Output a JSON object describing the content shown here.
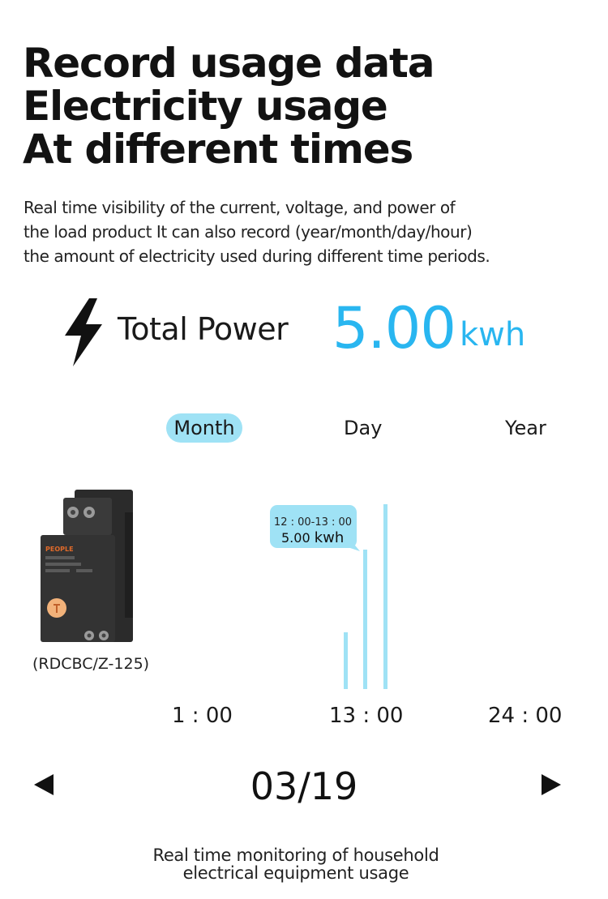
{
  "headline": {
    "lines": [
      "Record usage data",
      "Electricity usage",
      "At different times"
    ]
  },
  "description": {
    "lines": [
      "Real time visibility of the current, voltage, and power of",
      "the load product It can also record (year/month/day/hour)",
      "the amount of electricity used during different time periods."
    ]
  },
  "total_power": {
    "icon": "lightning-bolt-icon",
    "label": "Total Power",
    "value": "5.00",
    "unit": "kwh",
    "accent_color": "#29b6f0"
  },
  "tabs": [
    {
      "label": "Month",
      "selected": true
    },
    {
      "label": "Day",
      "selected": false
    },
    {
      "label": "Year",
      "selected": false
    }
  ],
  "device": {
    "brand": "PEOPLE",
    "model": "(RDCBC/Z-125)"
  },
  "chart_data": {
    "type": "bar",
    "bar_color": "#9fe2f5",
    "x_ticks": [
      "1 : 00",
      "13 : 00",
      "24 : 00"
    ],
    "tooltip": {
      "time": "12 : 00-13 : 00",
      "value": "5.00",
      "unit": "kwh"
    }
  },
  "navigation": {
    "date": "03/19"
  },
  "caption": {
    "lines": [
      "Real time monitoring of household",
      "electrical equipment usage"
    ]
  }
}
